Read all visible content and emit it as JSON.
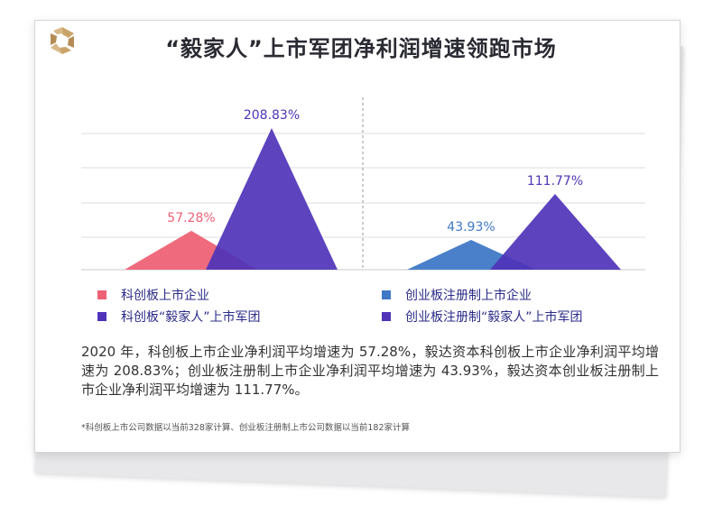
{
  "title": "“毅家人”上市军团净利润增速领跑市场",
  "colors": {
    "star_market": "#ee6275",
    "star_yijia": "#4f33b8",
    "gem_market": "#3f79c6",
    "gem_yijia": "#4f33b8"
  },
  "icon": "yijia-logo-icon",
  "chart_data": {
    "type": "area",
    "unit": "%",
    "gridlines": true,
    "groups": [
      {
        "series": [
          {
            "name": "科创板上市企业",
            "value": 57.28,
            "label": "57.28%",
            "color": "#ee6275"
          },
          {
            "name": "科创板“毅家人”上市军团",
            "value": 208.83,
            "label": "208.83%",
            "color": "#4f33b8"
          }
        ]
      },
      {
        "series": [
          {
            "name": "创业板注册制上市企业",
            "value": 43.93,
            "label": "43.93%",
            "color": "#3f79c6"
          },
          {
            "name": "创业板注册制“毅家人”上市军团",
            "value": 111.77,
            "label": "111.77%",
            "color": "#4f33b8"
          }
        ]
      }
    ]
  },
  "legend": [
    {
      "label": "科创板上市企业",
      "color": "#ee6275"
    },
    {
      "label": "科创板“毅家人”上市军团",
      "color": "#4f33b8"
    },
    {
      "label": "创业板注册制上市企业",
      "color": "#3f79c6"
    },
    {
      "label": "创业板注册制“毅家人”上市军团",
      "color": "#4f33b8"
    }
  ],
  "summary": "2020 年，科创板上市企业净利润平均增速为 57.28%，毅达资本科创板上市企业净利润平均增速为 208.83%；创业板注册制上市企业净利润平均增速为 43.93%，毅达资本创业板注册制上市企业净利润平均增速为 111.77%。",
  "footnote": "*科创板上市公司数据以当前328家计算、创业板注册制上市公司数据以当前182家计算"
}
